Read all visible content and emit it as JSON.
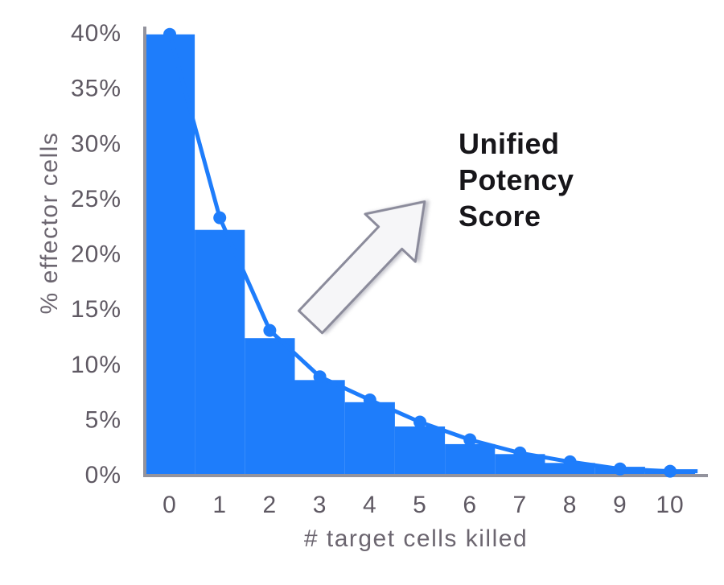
{
  "figure": {
    "background": "#ffffff"
  },
  "annotation": {
    "text": "Unified Potency Score",
    "icon": "up-right-arrow-icon",
    "text_color": "#17161a",
    "arrow_fill": "#f6f6f8",
    "arrow_border": "#8b8b9b"
  },
  "chart_data": {
    "type": "bar",
    "title": "",
    "xlabel": "# target cells killed",
    "ylabel": "% effector cells",
    "xlim": [
      -0.5,
      10.5
    ],
    "ylim": [
      0,
      40
    ],
    "grid": false,
    "legend": null,
    "x_ticks": {
      "labels": [
        "0",
        "1",
        "2",
        "3",
        "4",
        "5",
        "6",
        "7",
        "8",
        "9",
        "10"
      ],
      "values": [
        0,
        1,
        2,
        3,
        4,
        5,
        6,
        7,
        8,
        9,
        10
      ]
    },
    "y_ticks": {
      "labels": [
        "40%",
        "35%",
        "30%",
        "25%",
        "20%",
        "15%",
        "10%",
        "5%",
        "0%"
      ],
      "values": [
        40,
        35,
        30,
        25,
        20,
        15,
        10,
        5,
        0
      ]
    },
    "series": [
      {
        "name": "histogram of % effector cells by number of target cells killed",
        "type": "bar",
        "color": "#1e7dfb",
        "x": [
          0,
          1,
          2,
          3,
          4,
          5,
          6,
          7,
          8,
          9,
          10
        ],
        "values": [
          39.8,
          22.1,
          12.3,
          8.5,
          6.5,
          4.3,
          2.7,
          1.8,
          1.0,
          0.65,
          0.3
        ]
      },
      {
        "name": "fit line with markers",
        "type": "line+markers",
        "color": "#1e7dfb",
        "x": [
          0,
          1,
          2,
          3,
          4,
          5,
          6,
          7,
          8,
          9,
          10
        ],
        "values": [
          39.8,
          23.2,
          13.0,
          8.8,
          6.7,
          4.7,
          3.1,
          1.9,
          1.1,
          0.45,
          0.25
        ],
        "line_extends_to_x": 10.55
      }
    ],
    "axis_color": "#93939d",
    "tick_label_color": "#5f5963",
    "axis_title_color": "#6c6670"
  }
}
